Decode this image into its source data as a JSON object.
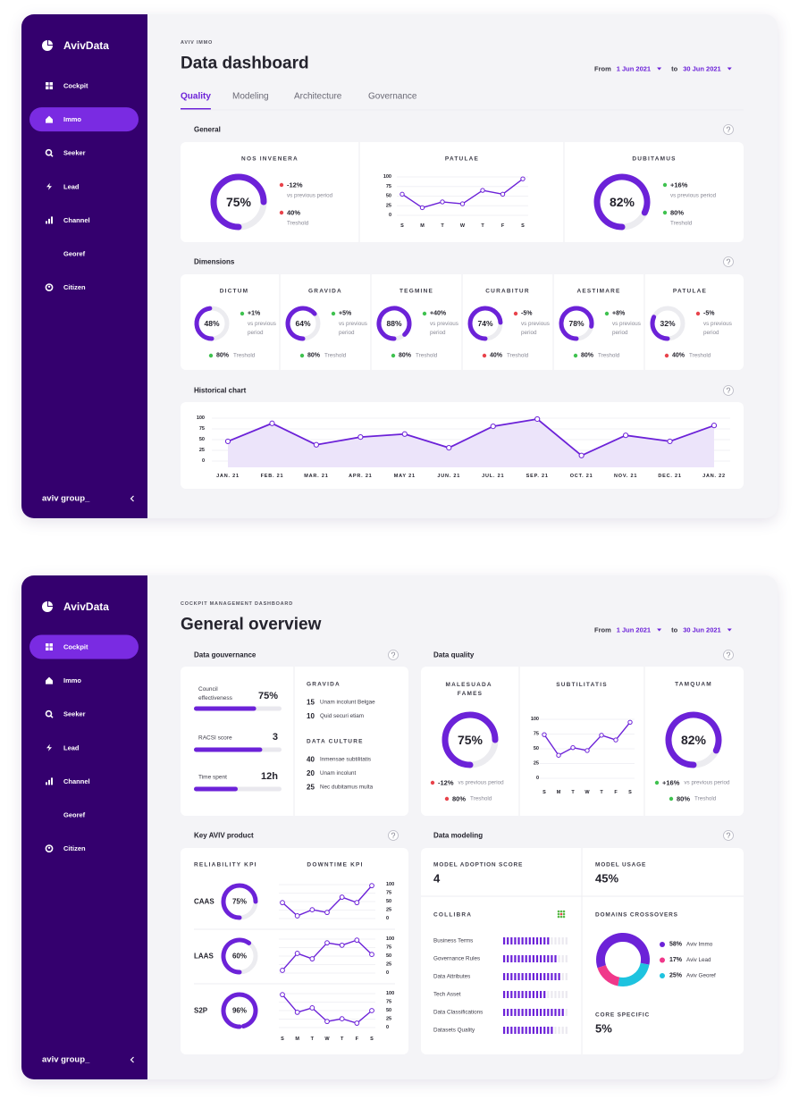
{
  "theme": {
    "accent": "#6c22d8"
  },
  "dashboards": [
    {
      "sidebar": {
        "brand": "AvivData",
        "menu": [
          "Cockpit",
          "Immo",
          "Seeker",
          "Lead",
          "Channel",
          "Georef",
          "Citizen"
        ],
        "active": 1,
        "footer": "aviv group_"
      },
      "header": {
        "eyebrow": "AVIV IMMO",
        "title": "Data dashboard",
        "from_label": "From",
        "from": "1 Jun 2021",
        "to_label": "to",
        "to": "30 Jun 2021"
      },
      "tabs": {
        "items": [
          "Quality",
          "Modeling",
          "Architecture",
          "Governance"
        ],
        "active": 0
      },
      "general": {
        "title": "General",
        "cards": [
          {
            "title": "NOS INVENERA",
            "gauge": {
              "value": 75,
              "label": "75%"
            },
            "delta": {
              "value": "-12%",
              "note": "vs previous period",
              "color": "#e8434b"
            },
            "threshold": {
              "value": "40%",
              "note": "Treshold",
              "color": "#e8434b"
            }
          },
          {
            "title": "PATULAE",
            "chart": {
              "type": "line",
              "x": [
                "S",
                "M",
                "T",
                "W",
                "T",
                "F",
                "S"
              ],
              "values": [
                55,
                20,
                35,
                30,
                65,
                55,
                95
              ],
              "ylim": [
                0,
                100
              ],
              "yticks": [
                0,
                25,
                50,
                75,
                100
              ],
              "color": "#6c22d8"
            }
          },
          {
            "title": "DUBITAMUS",
            "gauge": {
              "value": 82,
              "label": "82%"
            },
            "delta": {
              "value": "+16%",
              "note": "vs previous period",
              "color": "#3fc24f"
            },
            "threshold": {
              "value": "80%",
              "note": "Treshold",
              "color": "#3fc24f"
            }
          }
        ]
      },
      "dimensions": {
        "title": "Dimensions",
        "items": [
          {
            "title": "DICTUM",
            "gauge": {
              "value": 48,
              "label": "48%"
            },
            "delta": {
              "value": "+1%",
              "note": "vs previous period",
              "color": "#3fc24f"
            },
            "threshold": {
              "value": "80%",
              "note": "Treshold",
              "color": "#3fc24f"
            }
          },
          {
            "title": "GRAVIDA",
            "gauge": {
              "value": 64,
              "label": "64%"
            },
            "delta": {
              "value": "+5%",
              "note": "vs previous period",
              "color": "#3fc24f"
            },
            "threshold": {
              "value": "80%",
              "note": "Treshold",
              "color": "#3fc24f"
            }
          },
          {
            "title": "TEGMINE",
            "gauge": {
              "value": 88,
              "label": "88%"
            },
            "delta": {
              "value": "+40%",
              "note": "vs previous period",
              "color": "#3fc24f"
            },
            "threshold": {
              "value": "80%",
              "note": "Treshold",
              "color": "#3fc24f"
            }
          },
          {
            "title": "CURABITUR",
            "gauge": {
              "value": 74,
              "label": "74%"
            },
            "delta": {
              "value": "-5%",
              "note": "vs previous period",
              "color": "#e8434b"
            },
            "threshold": {
              "value": "40%",
              "note": "Treshold",
              "color": "#e8434b"
            }
          },
          {
            "title": "AESTIMARE",
            "gauge": {
              "value": 78,
              "label": "78%"
            },
            "delta": {
              "value": "+8%",
              "note": "vs previous period",
              "color": "#3fc24f"
            },
            "threshold": {
              "value": "80%",
              "note": "Treshold",
              "color": "#3fc24f"
            }
          },
          {
            "title": "PATULAE",
            "gauge": {
              "value": 32,
              "label": "32%"
            },
            "delta": {
              "value": "-5%",
              "note": "vs previous period",
              "color": "#e8434b"
            },
            "threshold": {
              "value": "40%",
              "note": "Treshold",
              "color": "#e8434b"
            }
          }
        ]
      },
      "historical": {
        "title": "Historical chart",
        "chart": {
          "type": "line",
          "x": [
            "JAN. 21",
            "FEB. 21",
            "MAR. 21",
            "APR. 21",
            "MAY 21",
            "JUN. 21",
            "JUL. 21",
            "SEP. 21",
            "OCT. 21",
            "NOV. 21",
            "DEC. 21",
            "JAN. 22"
          ],
          "values": [
            46,
            88,
            38,
            56,
            63,
            31,
            81,
            98,
            13,
            60,
            46,
            83
          ],
          "ylim": [
            0,
            100
          ],
          "yticks": [
            0,
            25,
            50,
            75,
            100
          ],
          "color": "#6c22d8"
        }
      }
    },
    {
      "sidebar": {
        "brand": "AvivData",
        "menu": [
          "Cockpit",
          "Immo",
          "Seeker",
          "Lead",
          "Channel",
          "Georef",
          "Citizen"
        ],
        "active": 0,
        "footer": "aviv group_"
      },
      "header": {
        "eyebrow": "COCKPIT MANAGEMENT DASHBOARD",
        "title": "General overview",
        "from_label": "From",
        "from": "1 Jun 2021",
        "to_label": "to",
        "to": "30 Jun 2021"
      },
      "governance": {
        "title": "Data gouvernance",
        "kpis": [
          {
            "label": "Council effectiveness",
            "value": "75%",
            "progress": 71
          },
          {
            "label": "RACSI score",
            "value": "3",
            "progress": 78
          },
          {
            "label": "Time spent",
            "value": "12h",
            "progress": 50
          }
        ],
        "lists": [
          {
            "title": "GRAVIDA",
            "items": [
              {
                "count": 15,
                "text": "Unam incolunt Belgae"
              },
              {
                "count": 10,
                "text": "Quid securi etiam"
              }
            ]
          },
          {
            "title": "DATA CULTURE",
            "items": [
              {
                "count": 40,
                "text": "Inmensae subtilitatis"
              },
              {
                "count": 20,
                "text": "Unam incolunt"
              },
              {
                "count": 25,
                "text": "Nec dubitamus multa"
              }
            ]
          }
        ]
      },
      "quality": {
        "title": "Data quality",
        "cards": [
          {
            "title": "MALESUADA FAMES",
            "gauge": {
              "value": 75,
              "label": "75%"
            },
            "delta": {
              "value": "-12%",
              "note": "vs previous period",
              "color": "#e8434b"
            },
            "threshold": {
              "value": "80%",
              "note": "Treshold",
              "color": "#e8434b"
            }
          },
          {
            "title": "SUBTILITATIS",
            "chart": {
              "type": "line",
              "x": [
                "S",
                "M",
                "T",
                "W",
                "T",
                "F",
                "S"
              ],
              "values": [
                74,
                39,
                52,
                47,
                73,
                65,
                95
              ],
              "ylim": [
                0,
                100
              ],
              "yticks": [
                0,
                25,
                50,
                75,
                100
              ],
              "color": "#6c22d8"
            }
          },
          {
            "title": "TAMQUAM",
            "gauge": {
              "value": 82,
              "label": "82%"
            },
            "delta": {
              "value": "+16%",
              "note": "vs previous period",
              "color": "#3fc24f"
            },
            "threshold": {
              "value": "80%",
              "note": "Treshold",
              "color": "#3fc24f"
            }
          }
        ]
      },
      "key_product": {
        "title": "Key AVIV product",
        "headers": [
          "RELIABILITY KPI",
          "DOWNTIME KPI"
        ],
        "x": [
          "S",
          "M",
          "T",
          "W",
          "T",
          "F",
          "S"
        ],
        "rows": [
          {
            "label": "CAAS",
            "gauge": {
              "value": 75,
              "label": "75%"
            },
            "chart": {
              "type": "line",
              "values": [
                47,
                8,
                26,
                18,
                63,
                47,
                97
              ],
              "ylim": [
                0,
                100
              ],
              "yticks": [
                0,
                25,
                50,
                75,
                100
              ],
              "color": "#6c22d8"
            }
          },
          {
            "label": "LAAS",
            "gauge": {
              "value": 60,
              "label": "60%"
            },
            "chart": {
              "type": "line",
              "values": [
                8,
                58,
                42,
                89,
                82,
                97,
                55
              ],
              "ylim": [
                0,
                100
              ],
              "yticks": [
                0,
                25,
                50,
                75,
                100
              ],
              "color": "#6c22d8"
            }
          },
          {
            "label": "S2P",
            "gauge": {
              "value": 96,
              "label": "96%"
            },
            "chart": {
              "type": "line",
              "values": [
                97,
                45,
                58,
                18,
                26,
                13,
                50
              ],
              "ylim": [
                0,
                100
              ],
              "yticks": [
                0,
                25,
                50,
                75,
                100
              ],
              "color": "#6c22d8"
            }
          }
        ]
      },
      "modeling": {
        "title": "Data modeling",
        "adoption": {
          "label": "MODEL ADOPTION SCORE",
          "value": 4
        },
        "usage": {
          "label": "MODEL USAGE",
          "value": "45%"
        },
        "collibra": {
          "title": "COLLIBRA",
          "rows": [
            {
              "label": "Business Terms",
              "value": 74
            },
            {
              "label": "Governance Rules",
              "value": 85
            },
            {
              "label": "Data Attributes",
              "value": 89
            },
            {
              "label": "Tech Asset",
              "value": 66
            },
            {
              "label": "Data Classifications",
              "value": 95
            },
            {
              "label": "Datasets Quality",
              "value": 80
            }
          ]
        },
        "domains": {
          "title": "DOMAINS CROSSOVERS",
          "segments": [
            {
              "name": "Aviv Immo",
              "value": 58,
              "label": "58%",
              "color": "#6c22d8"
            },
            {
              "name": "Aviv Lead",
              "value": 17,
              "label": "17%",
              "color": "#f0388a"
            },
            {
              "name": "Aviv Georef",
              "value": 25,
              "label": "25%",
              "color": "#1ec3df"
            }
          ]
        },
        "core": {
          "label": "CORE SPECIFIC",
          "value": "5%"
        }
      }
    }
  ]
}
